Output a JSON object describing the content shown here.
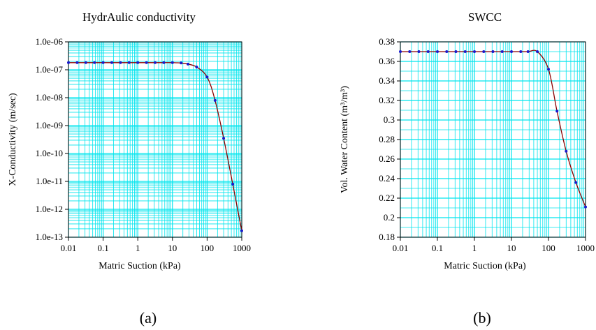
{
  "chart_data": [
    {
      "id": "a",
      "type": "line",
      "title": "HydrAulic conductivity",
      "xlabel": "Matric Suction (kPa)",
      "ylabel": "X-Conductivity (m/sec)",
      "x_scale": "log",
      "y_scale": "log",
      "xlim": [
        0.01,
        1000
      ],
      "ylim": [
        1e-13,
        1e-06
      ],
      "grid": true,
      "x_ticks": [
        0.01,
        0.1,
        1,
        10,
        100,
        1000
      ],
      "x_tick_labels": [
        "0.01",
        "0.1",
        "1",
        "10",
        "100",
        "1000"
      ],
      "y_ticks": [
        1e-13,
        1e-12,
        1e-11,
        1e-10,
        1e-09,
        1e-08,
        1e-07,
        1e-06
      ],
      "y_tick_labels": [
        "1.0e-13",
        "1.0e-12",
        "1.0e-11",
        "1.0e-10",
        "1.0e-09",
        "1.0e-08",
        "1.0e-07",
        "1.0e-06"
      ],
      "caption": "(a)",
      "colors": {
        "grid": "#00e5ee",
        "line": "#8b0000",
        "points": "#1a1acc"
      },
      "series": [
        {
          "x": [
            0.01,
            0.0178,
            0.0316,
            0.0562,
            0.1,
            0.178,
            0.316,
            0.562,
            1,
            1.78,
            3.16,
            5.62,
            10,
            17.8,
            28,
            50,
            100,
            170,
            300,
            550,
            1000
          ],
          "values": [
            1.8e-07,
            1.8e-07,
            1.8e-07,
            1.8e-07,
            1.8e-07,
            1.8e-07,
            1.8e-07,
            1.8e-07,
            1.8e-07,
            1.8e-07,
            1.8e-07,
            1.8e-07,
            1.8e-07,
            1.75e-07,
            1.6e-07,
            1.25e-07,
            5.5e-08,
            8e-09,
            3.5e-10,
            8e-12,
            1.7e-13
          ]
        }
      ]
    },
    {
      "id": "b",
      "type": "line",
      "title": "SWCC",
      "xlabel": "Matric Suction (kPa)",
      "ylabel": "Vol. Water Content (m³/m³)",
      "x_scale": "log",
      "y_scale": "linear",
      "xlim": [
        0.01,
        1000
      ],
      "ylim": [
        0.18,
        0.38
      ],
      "grid": true,
      "x_ticks": [
        0.01,
        0.1,
        1,
        10,
        100,
        1000
      ],
      "x_tick_labels": [
        "0.01",
        "0.1",
        "1",
        "10",
        "100",
        "1000"
      ],
      "y_ticks": [
        0.18,
        0.2,
        0.22,
        0.24,
        0.26,
        0.28,
        0.3,
        0.32,
        0.34,
        0.36,
        0.38
      ],
      "y_tick_labels": [
        "0.18",
        "0.2",
        "0.22",
        "0.24",
        "0.26",
        "0.28",
        "0.3",
        "0.32",
        "0.34",
        "0.36",
        "0.38"
      ],
      "caption": "(b)",
      "colors": {
        "grid": "#00e5ee",
        "line": "#8b0000",
        "points": "#1a1acc"
      },
      "series": [
        {
          "x": [
            0.01,
            0.0178,
            0.0316,
            0.0562,
            0.1,
            0.178,
            0.316,
            0.562,
            1,
            1.78,
            3.16,
            5.62,
            10,
            17.8,
            28,
            50,
            100,
            170,
            300,
            550,
            1000
          ],
          "values": [
            0.37,
            0.37,
            0.37,
            0.37,
            0.37,
            0.37,
            0.37,
            0.37,
            0.37,
            0.37,
            0.37,
            0.37,
            0.37,
            0.37,
            0.37,
            0.37,
            0.352,
            0.309,
            0.268,
            0.236,
            0.211
          ]
        }
      ]
    }
  ]
}
